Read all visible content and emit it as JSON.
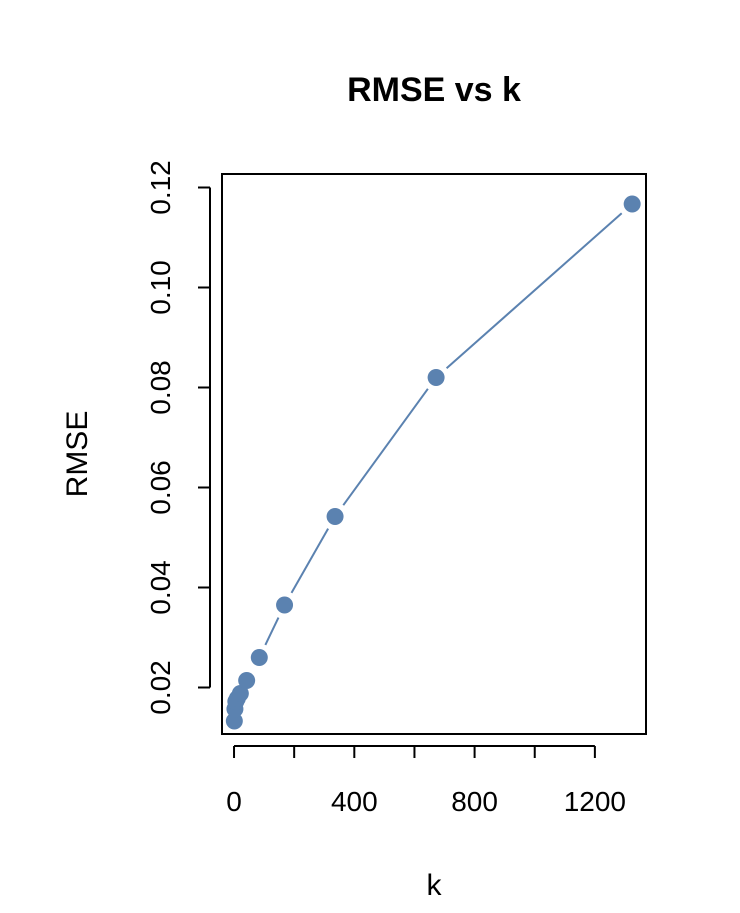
{
  "chart_data": {
    "type": "line",
    "title": "RMSE vs k",
    "xlabel": "k",
    "ylabel": "RMSE",
    "xlim": [
      -40,
      1370
    ],
    "ylim": [
      0.0107,
      0.1227
    ],
    "x_ticks": [
      0,
      200,
      400,
      600,
      800,
      1000,
      1200,
      1400
    ],
    "x_tick_labels": [
      "0",
      "",
      "400",
      "",
      "800",
      "",
      "1200",
      ""
    ],
    "y_ticks": [
      0.02,
      0.04,
      0.06,
      0.08,
      0.1,
      0.12
    ],
    "y_tick_labels": [
      "0.02",
      "0.04",
      "0.06",
      "0.08",
      "0.10",
      "0.12"
    ],
    "grid": false,
    "series": [
      {
        "color": "#5b82b0",
        "marker": "circle",
        "x": [
          1,
          3,
          6,
          11,
          21,
          42,
          84,
          168,
          336,
          672,
          1324
        ],
        "y": [
          0.0133,
          0.0157,
          0.0172,
          0.0178,
          0.0188,
          0.0214,
          0.026,
          0.0365,
          0.0542,
          0.082,
          0.1167
        ]
      }
    ]
  }
}
